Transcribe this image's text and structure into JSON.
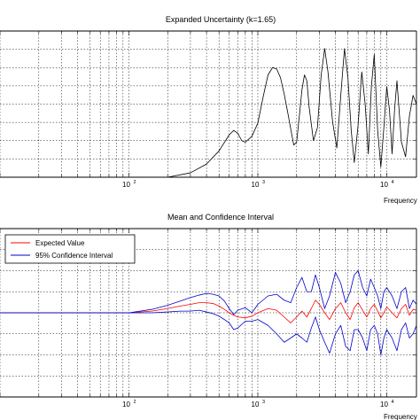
{
  "chart_data": [
    {
      "type": "line",
      "title": "Expanded Uncertainty (k=1.65)",
      "xlabel": "Frequency",
      "ylabel": "",
      "x_scale": "log",
      "xlim": [
        10,
        17000
      ],
      "ylim": [
        0,
        1
      ],
      "grid": true,
      "xtick_labels": [
        {
          "value": 100,
          "base": "10",
          "exp": "2"
        },
        {
          "value": 1000,
          "base": "10",
          "exp": "3"
        },
        {
          "value": 10000,
          "base": "10",
          "exp": "4"
        }
      ],
      "series": [
        {
          "color": "#000000",
          "x": [
            200,
            300,
            400,
            500,
            600,
            650,
            700,
            750,
            800,
            900,
            1000,
            1100,
            1200,
            1300,
            1400,
            1500,
            1600,
            1700,
            1800,
            1900,
            2000,
            2100,
            2200,
            2300,
            2400,
            2500,
            2700,
            2900,
            3100,
            3300,
            3500,
            3800,
            4100,
            4400,
            4700,
            5000,
            5300,
            5600,
            6000,
            6400,
            6800,
            7200,
            7600,
            8000,
            8500,
            9000,
            9500,
            10000,
            10500,
            11000,
            11500,
            12000,
            13000,
            14000,
            15000,
            16000,
            17000
          ],
          "y": [
            0.0,
            0.03,
            0.09,
            0.18,
            0.29,
            0.32,
            0.3,
            0.25,
            0.24,
            0.28,
            0.37,
            0.55,
            0.7,
            0.75,
            0.74,
            0.68,
            0.57,
            0.45,
            0.33,
            0.22,
            0.24,
            0.42,
            0.6,
            0.7,
            0.66,
            0.48,
            0.25,
            0.34,
            0.7,
            0.88,
            0.72,
            0.38,
            0.2,
            0.56,
            0.88,
            0.68,
            0.32,
            0.1,
            0.36,
            0.72,
            0.5,
            0.16,
            0.62,
            0.84,
            0.32,
            0.07,
            0.34,
            0.62,
            0.46,
            0.16,
            0.46,
            0.66,
            0.24,
            0.14,
            0.42,
            0.56,
            0.5
          ]
        }
      ]
    },
    {
      "type": "line",
      "title": "Mean and Confidence Interval",
      "xlabel": "Frequency",
      "ylabel": "",
      "x_scale": "log",
      "xlim": [
        10,
        17000
      ],
      "ylim": [
        -1,
        1
      ],
      "grid": true,
      "legend_position": "top-left",
      "xtick_labels": [
        {
          "value": 100,
          "base": "10",
          "exp": "2"
        },
        {
          "value": 1000,
          "base": "10",
          "exp": "3"
        },
        {
          "value": 10000,
          "base": "10",
          "exp": "4"
        }
      ],
      "x": [
        10,
        100,
        150,
        200,
        250,
        300,
        350,
        400,
        450,
        500,
        550,
        600,
        650,
        700,
        800,
        900,
        1000,
        1200,
        1400,
        1600,
        1800,
        2000,
        2200,
        2400,
        2600,
        2800,
        3000,
        3300,
        3600,
        4000,
        4400,
        4800,
        5200,
        5600,
        6000,
        6500,
        7000,
        7500,
        8000,
        8500,
        9000,
        9500,
        10000,
        11000,
        12000,
        13000,
        14000,
        15000,
        16000,
        17000
      ],
      "series": [
        {
          "name": "Expected Value",
          "color": "#ff0000",
          "values": [
            0.0,
            0.0,
            0.02,
            0.05,
            0.08,
            0.1,
            0.12,
            0.12,
            0.11,
            0.08,
            0.04,
            0.0,
            -0.03,
            -0.05,
            -0.06,
            -0.04,
            0.0,
            0.05,
            0.03,
            -0.05,
            -0.12,
            -0.05,
            0.02,
            -0.05,
            0.05,
            0.15,
            0.1,
            0.0,
            -0.08,
            0.05,
            0.12,
            0.0,
            -0.08,
            0.06,
            0.12,
            0.03,
            -0.05,
            0.05,
            0.1,
            0.02,
            -0.06,
            0.0,
            0.07,
            0.0,
            -0.06,
            0.05,
            0.1,
            -0.03,
            0.04,
            0.03
          ]
        },
        {
          "name": "95% Confidence Interval",
          "color": "#0000cc",
          "upper": [
            0.0,
            0.0,
            0.04,
            0.09,
            0.14,
            0.18,
            0.21,
            0.23,
            0.22,
            0.2,
            0.14,
            0.05,
            -0.02,
            0.03,
            0.06,
            0.0,
            0.1,
            0.2,
            0.22,
            0.15,
            0.12,
            0.3,
            0.42,
            0.25,
            0.25,
            0.45,
            0.3,
            0.05,
            0.2,
            0.48,
            0.35,
            0.12,
            0.25,
            0.45,
            0.5,
            0.3,
            0.2,
            0.4,
            0.3,
            0.2,
            0.05,
            0.25,
            0.3,
            0.2,
            0.05,
            0.25,
            0.3,
            0.05,
            0.15,
            0.1
          ],
          "lower": [
            0.0,
            0.0,
            0.0,
            0.01,
            0.02,
            0.02,
            0.03,
            0.01,
            -0.01,
            -0.04,
            -0.08,
            -0.12,
            -0.2,
            -0.18,
            -0.1,
            -0.1,
            -0.08,
            -0.15,
            -0.25,
            -0.35,
            -0.3,
            -0.25,
            -0.3,
            -0.35,
            -0.18,
            -0.05,
            -0.2,
            -0.35,
            -0.48,
            -0.25,
            -0.15,
            -0.4,
            -0.45,
            -0.2,
            -0.2,
            -0.3,
            -0.45,
            -0.2,
            -0.15,
            -0.25,
            -0.5,
            -0.3,
            -0.2,
            -0.3,
            -0.45,
            -0.2,
            -0.12,
            -0.3,
            -0.25,
            -0.15
          ]
        }
      ]
    }
  ]
}
